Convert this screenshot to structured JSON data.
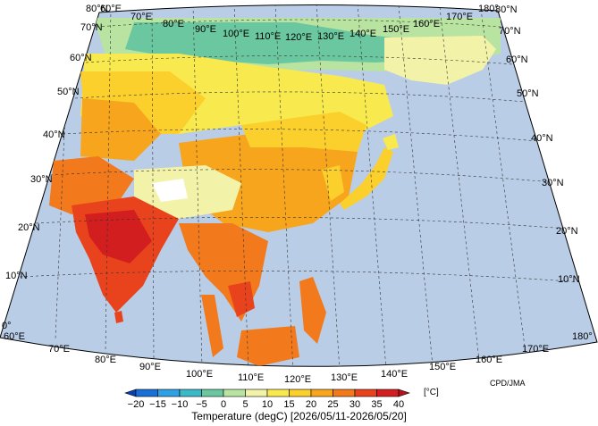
{
  "map": {
    "credit": "CPD/JMA",
    "caption": "Temperature (degC) [2026/05/11-2026/05/20]",
    "colors": {
      "ocean": "#b9cde6",
      "outside": "#ffffff"
    },
    "lon_labels_top": [
      "60°E",
      "70°E",
      "80°E",
      "90°E",
      "100°E",
      "110°E",
      "120°E",
      "130°E",
      "140°E",
      "150°E",
      "160°E",
      "170°E",
      "180°"
    ],
    "lon_labels_bottom": [
      "60°E",
      "70°E",
      "80°E",
      "90°E",
      "100°E",
      "110°E",
      "120°E",
      "130°E",
      "140°E",
      "150°E",
      "160°E",
      "170°E",
      "180°"
    ],
    "lat_labels": [
      "0°",
      "10°N",
      "20°N",
      "30°N",
      "40°N",
      "50°N",
      "60°N",
      "70°N",
      "80°N"
    ]
  },
  "colorbar": {
    "unit": "[°C]",
    "ticks": [
      "−20",
      "−15",
      "−10",
      "−5",
      "0",
      "5",
      "10",
      "15",
      "20",
      "25",
      "30",
      "35",
      "40"
    ],
    "colors": [
      "#0a3fb5",
      "#1a6fd6",
      "#2fa0e3",
      "#3cb9c7",
      "#6bc7a0",
      "#b8e3a1",
      "#f2f3a8",
      "#f8ea4e",
      "#fbcf2c",
      "#f8a51e",
      "#f27a1c",
      "#e9431e",
      "#d21e1e",
      "#b5121b"
    ]
  }
}
